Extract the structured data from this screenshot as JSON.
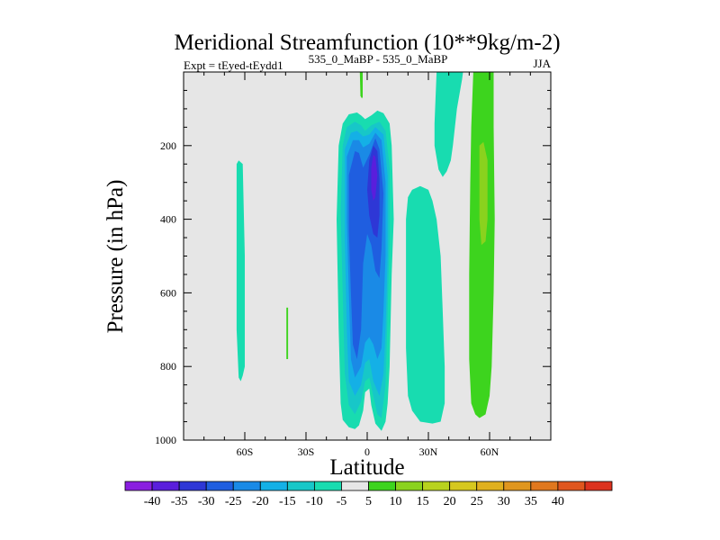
{
  "chart_data": {
    "type": "heatmap",
    "title": "Meridional Streamfunction (10**9kg/m-2)",
    "left_subtitle": "Expt = tEyed-tEydd1",
    "center_subtitle": "535_0_MaBP - 535_0_MaBP",
    "right_subtitle": "JJA",
    "xlabel": "Latitude",
    "ylabel": "Pressure (in hPa)",
    "xlim": [
      -90,
      90
    ],
    "ylim": [
      1000,
      0
    ],
    "x_ticks": [
      {
        "value": -60,
        "label": "60S"
      },
      {
        "value": -30,
        "label": "30S"
      },
      {
        "value": 0,
        "label": "0"
      },
      {
        "value": 30,
        "label": "30N"
      },
      {
        "value": 60,
        "label": "60N"
      }
    ],
    "y_ticks": [
      {
        "value": 200,
        "label": "200"
      },
      {
        "value": 400,
        "label": "400"
      },
      {
        "value": 600,
        "label": "600"
      },
      {
        "value": 800,
        "label": "800"
      },
      {
        "value": 1000,
        "label": "1000"
      }
    ],
    "background_color": "#e6e6e6",
    "colorbar": {
      "colors": [
        "#8a1ee0",
        "#5a1edc",
        "#2e37d6",
        "#1f5ee0",
        "#1a8ae6",
        "#14b0e6",
        "#17c7c8",
        "#18dcb0",
        "#e6e6e6",
        "#3dd41e",
        "#8ad21e",
        "#b8d21e",
        "#d6c81e",
        "#e0b01e",
        "#e0961e",
        "#e0781e",
        "#e0561e",
        "#dc321e"
      ],
      "labels": [
        "-40",
        "-35",
        "-30",
        "-25",
        "-20",
        "-15",
        "-10",
        "-5",
        "5",
        "10",
        "15",
        "20",
        "25",
        "30",
        "35",
        "40"
      ]
    },
    "regions": [
      {
        "name": "sh-60s-band",
        "level": "-5",
        "color": "#18dcb0",
        "points": [
          [
            -63,
            240
          ],
          [
            -61,
            250
          ],
          [
            -60,
            500
          ],
          [
            -60,
            800
          ],
          [
            -61,
            825
          ],
          [
            -62,
            840
          ],
          [
            -63,
            830
          ],
          [
            -64,
            700
          ],
          [
            -64,
            400
          ],
          [
            -64,
            250
          ]
        ]
      },
      {
        "name": "sh-40s-line",
        "level": "10",
        "color": "#3dd41e",
        "points": [
          [
            -39.6,
            640
          ],
          [
            -38.8,
            640
          ],
          [
            -38.8,
            780
          ],
          [
            -39.6,
            780
          ]
        ]
      },
      {
        "name": "eq-negative-cell-outer",
        "level": "-5",
        "color": "#18dcb0",
        "points": [
          [
            -14,
            200
          ],
          [
            -12,
            140
          ],
          [
            -9,
            115
          ],
          [
            -5,
            110
          ],
          [
            -3,
            118
          ],
          [
            -1,
            128
          ],
          [
            2,
            118
          ],
          [
            5,
            105
          ],
          [
            8,
            112
          ],
          [
            11,
            140
          ],
          [
            12,
            200
          ],
          [
            13,
            400
          ],
          [
            12,
            550
          ],
          [
            11,
            800
          ],
          [
            10,
            900
          ],
          [
            9,
            950
          ],
          [
            7,
            975
          ],
          [
            4,
            955
          ],
          [
            2,
            905
          ],
          [
            1,
            860
          ],
          [
            -1,
            870
          ],
          [
            -2,
            920
          ],
          [
            -4,
            960
          ],
          [
            -6,
            970
          ],
          [
            -9,
            965
          ],
          [
            -12,
            945
          ],
          [
            -13,
            900
          ],
          [
            -14,
            700
          ],
          [
            -15,
            400
          ]
        ]
      },
      {
        "name": "eq-negative-cell-10",
        "level": "-10",
        "color": "#17c7c8",
        "points": [
          [
            -12,
            200
          ],
          [
            -10,
            150
          ],
          [
            -6,
            135
          ],
          [
            -3,
            145
          ],
          [
            -1,
            160
          ],
          [
            2,
            145
          ],
          [
            6,
            135
          ],
          [
            9,
            160
          ],
          [
            11,
            260
          ],
          [
            11,
            450
          ],
          [
            10,
            650
          ],
          [
            9,
            850
          ],
          [
            7,
            940
          ],
          [
            5,
            930
          ],
          [
            3,
            880
          ],
          [
            1,
            830
          ],
          [
            -1,
            840
          ],
          [
            -3,
            895
          ],
          [
            -6,
            930
          ],
          [
            -9,
            905
          ],
          [
            -11,
            820
          ],
          [
            -12,
            600
          ],
          [
            -13,
            380
          ]
        ]
      },
      {
        "name": "eq-negative-cell-15",
        "level": "-15",
        "color": "#14b0e6",
        "points": [
          [
            -11,
            210
          ],
          [
            -8,
            165
          ],
          [
            -5,
            160
          ],
          [
            -2,
            175
          ],
          [
            1,
            170
          ],
          [
            4,
            150
          ],
          [
            8,
            170
          ],
          [
            10,
            280
          ],
          [
            10,
            500
          ],
          [
            9,
            700
          ],
          [
            8,
            820
          ],
          [
            6,
            880
          ],
          [
            3,
            840
          ],
          [
            1,
            780
          ],
          [
            -1,
            790
          ],
          [
            -3,
            850
          ],
          [
            -6,
            880
          ],
          [
            -9,
            840
          ],
          [
            -10,
            700
          ],
          [
            -11,
            450
          ]
        ]
      },
      {
        "name": "eq-negative-cell-20",
        "level": "-20",
        "color": "#1a8ae6",
        "points": [
          [
            -10,
            230
          ],
          [
            -7,
            185
          ],
          [
            -4,
            185
          ],
          [
            -2,
            205
          ],
          [
            1,
            195
          ],
          [
            4,
            165
          ],
          [
            7,
            185
          ],
          [
            9,
            300
          ],
          [
            9,
            500
          ],
          [
            8,
            650
          ],
          [
            7,
            750
          ],
          [
            5,
            780
          ],
          [
            3,
            740
          ],
          [
            1,
            720
          ],
          [
            -1,
            735
          ],
          [
            -3,
            800
          ],
          [
            -6,
            830
          ],
          [
            -8,
            780
          ],
          [
            -9,
            600
          ],
          [
            -10,
            400
          ]
        ]
      },
      {
        "name": "eq-negative-cell-25",
        "level": "-25",
        "color": "#1f5ee0",
        "points": [
          [
            -9,
            280
          ],
          [
            -6,
            215
          ],
          [
            -4,
            220
          ],
          [
            -2,
            260
          ],
          [
            1,
            225
          ],
          [
            4,
            180
          ],
          [
            6,
            210
          ],
          [
            8,
            330
          ],
          [
            7,
            480
          ],
          [
            6,
            560
          ],
          [
            4,
            540
          ],
          [
            2,
            470
          ],
          [
            0,
            440
          ],
          [
            -2,
            520
          ],
          [
            -3,
            700
          ],
          [
            -5,
            780
          ],
          [
            -7,
            740
          ],
          [
            -8,
            600
          ],
          [
            -9,
            430
          ]
        ]
      },
      {
        "name": "eq-negative-cell-30",
        "level": "-30",
        "color": "#2e37d6",
        "points": [
          [
            1,
            240
          ],
          [
            3,
            200
          ],
          [
            5,
            215
          ],
          [
            6,
            290
          ],
          [
            6,
            390
          ],
          [
            5,
            450
          ],
          [
            3,
            440
          ],
          [
            1,
            390
          ],
          [
            0,
            320
          ]
        ]
      },
      {
        "name": "eq-negative-core-35",
        "level": "-35",
        "color": "#5a1edc",
        "points": [
          [
            2,
            260
          ],
          [
            3,
            225
          ],
          [
            4,
            230
          ],
          [
            5,
            280
          ],
          [
            4,
            340
          ],
          [
            3,
            350
          ],
          [
            2,
            320
          ]
        ]
      },
      {
        "name": "eq-top-green-strip",
        "level": "10",
        "color": "#3dd41e",
        "points": [
          [
            -3.6,
            0
          ],
          [
            -2.2,
            0
          ],
          [
            -2.2,
            68
          ],
          [
            -2.6,
            72
          ],
          [
            -3.3,
            65
          ]
        ]
      },
      {
        "name": "nh-30n-band",
        "level": "-5",
        "color": "#18dcb0",
        "points": [
          [
            20,
            340
          ],
          [
            22,
            320
          ],
          [
            26,
            310
          ],
          [
            30,
            320
          ],
          [
            32,
            350
          ],
          [
            34,
            400
          ],
          [
            36,
            500
          ],
          [
            37,
            650
          ],
          [
            38,
            800
          ],
          [
            38,
            900
          ],
          [
            36,
            950
          ],
          [
            32,
            955
          ],
          [
            26,
            950
          ],
          [
            22,
            920
          ],
          [
            20,
            880
          ],
          [
            19,
            750
          ],
          [
            19,
            500
          ],
          [
            19,
            400
          ]
        ]
      },
      {
        "name": "nh-upper-band",
        "level": "-5",
        "color": "#18dcb0",
        "points": [
          [
            34,
            0
          ],
          [
            47,
            0
          ],
          [
            46.5,
            20
          ],
          [
            44,
            100
          ],
          [
            42,
            200
          ],
          [
            41,
            240
          ],
          [
            39,
            270
          ],
          [
            37,
            285
          ],
          [
            35,
            265
          ],
          [
            33,
            200
          ],
          [
            33,
            140
          ]
        ]
      },
      {
        "name": "nh-positive-cell",
        "level": "10",
        "color": "#3dd41e",
        "points": [
          [
            52,
            0
          ],
          [
            62,
            0
          ],
          [
            62,
            150
          ],
          [
            62.5,
            400
          ],
          [
            62,
            600
          ],
          [
            61,
            800
          ],
          [
            60,
            880
          ],
          [
            58,
            930
          ],
          [
            55,
            940
          ],
          [
            53,
            930
          ],
          [
            51,
            900
          ],
          [
            50,
            780
          ],
          [
            50,
            550
          ],
          [
            50.5,
            300
          ],
          [
            51,
            150
          ]
        ]
      },
      {
        "name": "nh-positive-core",
        "level": "15",
        "color": "#8ad21e",
        "points": [
          [
            55,
            200
          ],
          [
            57,
            190
          ],
          [
            59,
            240
          ],
          [
            59,
            400
          ],
          [
            58,
            460
          ],
          [
            56,
            470
          ],
          [
            55,
            400
          ]
        ]
      }
    ]
  }
}
